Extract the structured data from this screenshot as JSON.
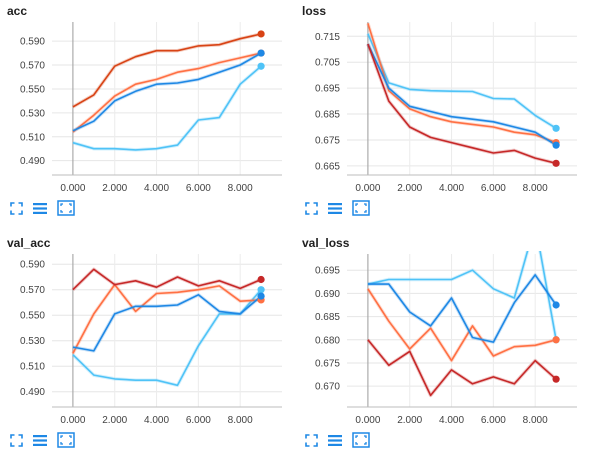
{
  "icons": {
    "expand": "fullscreen-expand-icon",
    "data_table": "list-lines-icon",
    "fit_domain": "fit-domain-icon"
  },
  "colors": {
    "accent_blue": "#1e88e5",
    "dark_red": "#c62828"
  },
  "chart_data": [
    {
      "type": "line",
      "title": "acc",
      "xlabel": "",
      "ylabel": "",
      "xlim": [
        -1,
        10
      ],
      "ylim": [
        0.478,
        0.606
      ],
      "xticks": [
        "0.000",
        "2.000",
        "4.000",
        "6.000",
        "8.000"
      ],
      "yticks": [
        "0.590",
        "0.570",
        "0.550",
        "0.530",
        "0.510",
        "0.490"
      ],
      "grid": true,
      "x": [
        0,
        1,
        2,
        3,
        4,
        5,
        6,
        7,
        8,
        9
      ],
      "series": [
        {
          "color": "#d84315",
          "values": [
            0.535,
            0.545,
            0.569,
            0.577,
            0.582,
            0.582,
            0.586,
            0.587,
            0.592,
            0.596
          ]
        },
        {
          "color": "#ff7043",
          "values": [
            0.514,
            0.528,
            0.544,
            0.554,
            0.558,
            0.564,
            0.567,
            0.572,
            0.576,
            0.58
          ]
        },
        {
          "color": "#1e88e5",
          "values": [
            0.515,
            0.523,
            0.54,
            0.548,
            0.554,
            0.555,
            0.558,
            0.564,
            0.57,
            0.58
          ]
        },
        {
          "color": "#4fc3f7",
          "values": [
            0.505,
            0.5,
            0.5,
            0.499,
            0.5,
            0.503,
            0.524,
            0.526,
            0.554,
            0.569
          ]
        }
      ]
    },
    {
      "type": "line",
      "title": "loss",
      "xlabel": "",
      "ylabel": "",
      "xlim": [
        -1,
        10
      ],
      "ylim": [
        0.6615,
        0.7205
      ],
      "xticks": [
        "0.000",
        "2.000",
        "4.000",
        "6.000",
        "8.000"
      ],
      "yticks": [
        "0.715",
        "0.705",
        "0.695",
        "0.685",
        "0.675",
        "0.665"
      ],
      "grid": true,
      "x": [
        0,
        1,
        2,
        3,
        4,
        5,
        6,
        7,
        8,
        9
      ],
      "series": [
        {
          "color": "#4fc3f7",
          "values": [
            0.716,
            0.697,
            0.6945,
            0.694,
            0.6938,
            0.6937,
            0.691,
            0.6908,
            0.6845,
            0.6795
          ]
        },
        {
          "color": "#ff7043",
          "values": [
            0.72,
            0.694,
            0.687,
            0.684,
            0.682,
            0.681,
            0.68,
            0.678,
            0.677,
            0.674
          ]
        },
        {
          "color": "#1e88e5",
          "values": [
            0.712,
            0.695,
            0.688,
            0.686,
            0.684,
            0.683,
            0.682,
            0.68,
            0.678,
            0.673
          ]
        },
        {
          "color": "#c62828",
          "values": [
            0.712,
            0.69,
            0.68,
            0.676,
            0.674,
            0.672,
            0.67,
            0.671,
            0.668,
            0.666
          ]
        }
      ]
    },
    {
      "type": "line",
      "title": "val_acc",
      "xlabel": "",
      "ylabel": "",
      "xlim": [
        -1,
        10
      ],
      "ylim": [
        0.478,
        0.598
      ],
      "xticks": [
        "0.000",
        "2.000",
        "4.000",
        "6.000",
        "8.000"
      ],
      "yticks": [
        "0.590",
        "0.570",
        "0.550",
        "0.530",
        "0.510",
        "0.490"
      ],
      "grid": true,
      "x": [
        0,
        1,
        2,
        3,
        4,
        5,
        6,
        7,
        8,
        9
      ],
      "series": [
        {
          "color": "#4fc3f7",
          "values": [
            0.519,
            0.503,
            0.5,
            0.499,
            0.499,
            0.495,
            0.526,
            0.551,
            0.551,
            0.57
          ]
        },
        {
          "color": "#ff7043",
          "values": [
            0.52,
            0.551,
            0.574,
            0.553,
            0.567,
            0.568,
            0.57,
            0.573,
            0.561,
            0.562
          ]
        },
        {
          "color": "#1e88e5",
          "values": [
            0.525,
            0.522,
            0.551,
            0.557,
            0.557,
            0.558,
            0.566,
            0.553,
            0.551,
            0.565
          ]
        },
        {
          "color": "#c62828",
          "values": [
            0.57,
            0.586,
            0.574,
            0.577,
            0.572,
            0.58,
            0.573,
            0.577,
            0.571,
            0.578
          ]
        }
      ]
    },
    {
      "type": "line",
      "title": "val_loss",
      "xlabel": "",
      "ylabel": "",
      "xlim": [
        -1,
        10
      ],
      "ylim": [
        0.6655,
        0.6985
      ],
      "xticks": [
        "0.000",
        "2.000",
        "4.000",
        "6.000",
        "8.000"
      ],
      "yticks": [
        "0.695",
        "0.690",
        "0.685",
        "0.680",
        "0.675",
        "0.670"
      ],
      "grid": true,
      "x": [
        0,
        1,
        2,
        3,
        4,
        5,
        6,
        7,
        8,
        9
      ],
      "series": [
        {
          "color": "#4fc3f7",
          "values": [
            0.692,
            0.693,
            0.693,
            0.693,
            0.693,
            0.695,
            0.691,
            0.689,
            0.705,
            0.68
          ]
        },
        {
          "color": "#ff7043",
          "values": [
            0.691,
            0.684,
            0.678,
            0.6825,
            0.6755,
            0.683,
            0.6765,
            0.6785,
            0.6788,
            0.68
          ]
        },
        {
          "color": "#1e88e5",
          "values": [
            0.692,
            0.692,
            0.686,
            0.683,
            0.689,
            0.6805,
            0.6795,
            0.688,
            0.694,
            0.6875
          ]
        },
        {
          "color": "#c62828",
          "values": [
            0.68,
            0.6745,
            0.6775,
            0.668,
            0.6735,
            0.6705,
            0.672,
            0.6705,
            0.6755,
            0.6715
          ]
        }
      ]
    }
  ]
}
